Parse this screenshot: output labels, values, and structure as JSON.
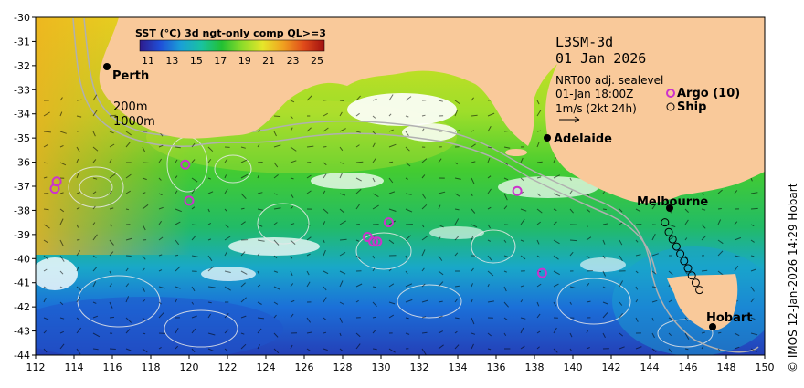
{
  "map": {
    "product": "L3SM-3d",
    "date": "01 Jan 2026",
    "sealevel_label": "NRT00 adj. sealevel",
    "time_label": "01-Jan 18:00Z",
    "velocity_scale": "1m/s (2kt 24h)",
    "argo_legend": "Argo (10)",
    "ship_legend": "Ship",
    "credit": "© IMOS 12-Jan-2026 14:29 Hobart",
    "contours": {
      "label_200": "200m",
      "label_1000": "1000m"
    }
  },
  "colorbar": {
    "title": "SST (°C) 3d ngt-only comp QL>=3",
    "ticks": [
      "11",
      "13",
      "15",
      "17",
      "19",
      "21",
      "23",
      "25"
    ]
  },
  "axes": {
    "lon_ticks": [
      "112",
      "114",
      "116",
      "118",
      "120",
      "122",
      "124",
      "126",
      "128",
      "130",
      "132",
      "134",
      "136",
      "138",
      "140",
      "142",
      "144",
      "146",
      "148",
      "150"
    ],
    "lat_ticks": [
      "-30",
      "-31",
      "-32",
      "-33",
      "-34",
      "-35",
      "-36",
      "-37",
      "-38",
      "-39",
      "-40",
      "-41",
      "-42",
      "-43",
      "-44"
    ]
  },
  "cities": [
    {
      "name": "Perth"
    },
    {
      "name": "Adelaide"
    },
    {
      "name": "Melbourne"
    },
    {
      "name": "Hobart"
    }
  ],
  "argo": [
    {
      "lon": 113.1,
      "lat": -36.8
    },
    {
      "lon": 113.0,
      "lat": -37.1
    },
    {
      "lon": 119.8,
      "lat": -36.1
    },
    {
      "lon": 120.0,
      "lat": -37.6
    },
    {
      "lon": 129.3,
      "lat": -39.1
    },
    {
      "lon": 129.6,
      "lat": -39.3
    },
    {
      "lon": 129.8,
      "lat": -39.3
    },
    {
      "lon": 130.4,
      "lat": -38.5
    },
    {
      "lon": 137.1,
      "lat": -37.2
    },
    {
      "lon": 138.4,
      "lat": -40.6
    }
  ],
  "ships": [
    {
      "lon": 144.8,
      "lat": -38.5
    },
    {
      "lon": 145.0,
      "lat": -38.9
    },
    {
      "lon": 145.2,
      "lat": -39.2
    },
    {
      "lon": 145.4,
      "lat": -39.5
    },
    {
      "lon": 145.6,
      "lat": -39.8
    },
    {
      "lon": 145.8,
      "lat": -40.1
    },
    {
      "lon": 146.0,
      "lat": -40.4
    },
    {
      "lon": 146.2,
      "lat": -40.7
    },
    {
      "lon": 146.4,
      "lat": -41.0
    },
    {
      "lon": 146.6,
      "lat": -41.3
    }
  ],
  "colors": {
    "land": "#f9c99a",
    "argo": "#cc33cc",
    "ship": "#000000",
    "colorbar_stops": [
      "#2e1a8c",
      "#1f4fd8",
      "#1aa0d6",
      "#19c2a0",
      "#22c033",
      "#8edc2a",
      "#e6e62a",
      "#f0a020",
      "#e04a1a",
      "#a01010"
    ]
  }
}
